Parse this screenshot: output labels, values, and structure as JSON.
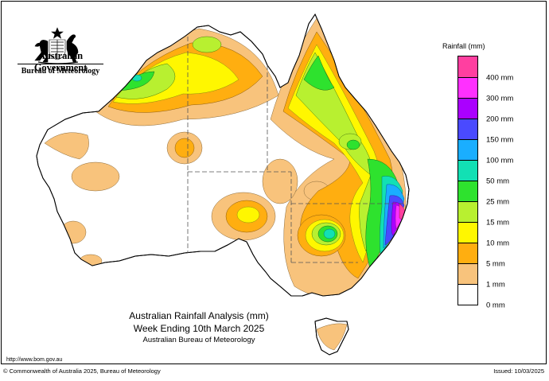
{
  "header": {
    "title": "Australian Government",
    "subtitle": "Bureau of Meteorology",
    "crest_icon": "commonwealth-coat-of-arms-icon"
  },
  "map": {
    "title_line1": "Australian Rainfall Analysis (mm)",
    "title_line2": "Week Ending 10th March 2025",
    "title_line3": "Australian Bureau of Meteorology"
  },
  "legend": {
    "title": "Rainfall (mm)",
    "classes": [
      {
        "label": "400 mm",
        "color": "#ff3fa0"
      },
      {
        "label": "300 mm",
        "color": "#ff30ff"
      },
      {
        "label": "200 mm",
        "color": "#aa00ff"
      },
      {
        "label": "150 mm",
        "color": "#4a4aff"
      },
      {
        "label": "100 mm",
        "color": "#1aaeff"
      },
      {
        "label": "50 mm",
        "color": "#12e0b4"
      },
      {
        "label": "25 mm",
        "color": "#2ee22e"
      },
      {
        "label": "15 mm",
        "color": "#b8f030"
      },
      {
        "label": "10 mm",
        "color": "#fff700"
      },
      {
        "label": "5 mm",
        "color": "#ffae10"
      },
      {
        "label": "1 mm",
        "color": "#f8c37c"
      },
      {
        "label": "0 mm",
        "color": "#ffffff"
      }
    ]
  },
  "footer": {
    "url": "http://www.bom.gov.au",
    "copyright": "© Commonwealth of Australia 2025, Bureau of Meteorology",
    "issued": "Issued: 10/03/2025"
  }
}
